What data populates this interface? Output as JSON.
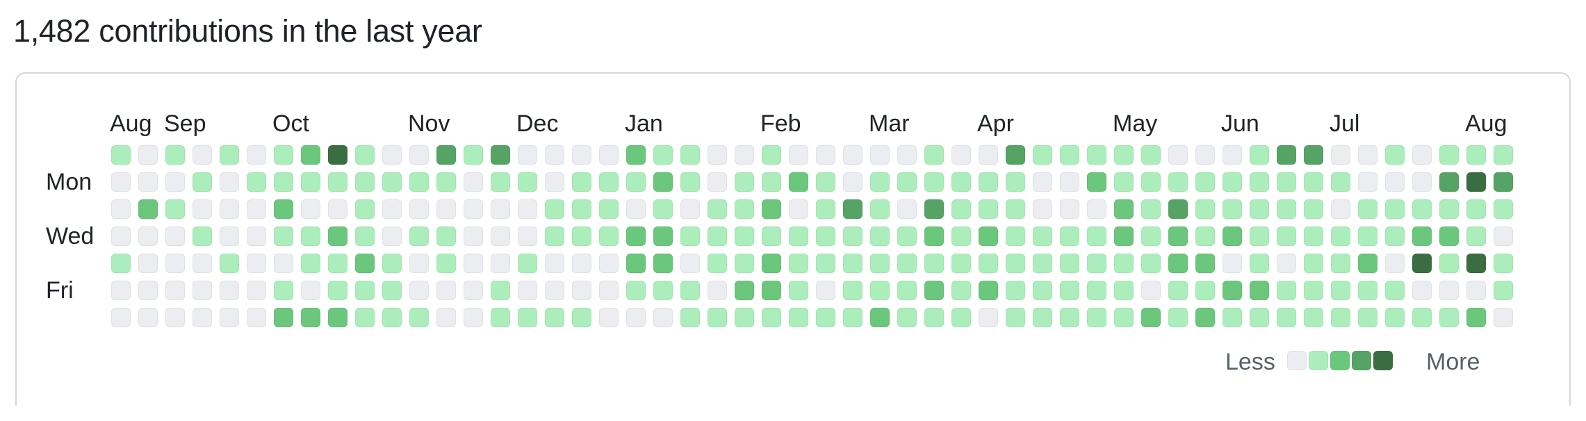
{
  "header": {
    "title": "1,482 contributions in the last year"
  },
  "chart_data": {
    "type": "heatmap",
    "title": "1,482 contributions in the last year",
    "months": [
      {
        "label": "Aug",
        "week": 0
      },
      {
        "label": "Sep",
        "week": 2
      },
      {
        "label": "Oct",
        "week": 6
      },
      {
        "label": "Nov",
        "week": 11
      },
      {
        "label": "Dec",
        "week": 15
      },
      {
        "label": "Jan",
        "week": 19
      },
      {
        "label": "Feb",
        "week": 24
      },
      {
        "label": "Mar",
        "week": 28
      },
      {
        "label": "Apr",
        "week": 32
      },
      {
        "label": "May",
        "week": 37
      },
      {
        "label": "Jun",
        "week": 41
      },
      {
        "label": "Jul",
        "week": 45
      },
      {
        "label": "Aug",
        "week": 50
      }
    ],
    "day_labels": [
      {
        "label": "Mon",
        "row": 1
      },
      {
        "label": "Wed",
        "row": 3
      },
      {
        "label": "Fri",
        "row": 5
      }
    ],
    "levels_by_day": [
      "1010101241003130000211001000001003111110001330010111",
      "0001011111111011011121011210111111002111111111000343",
      "0210002001000000111010112013103111000213111110111111",
      "0001001121011000111221111111112121111212121111112210",
      "1000100112101001000220112111111111111112201011204141",
      "0000001011100010000111022101112121111101122111110001",
      "0000002221110011110001111111211101111121211111111120"
    ],
    "legend": {
      "less_label": "Less",
      "more_label": "More",
      "levels": [
        0,
        1,
        2,
        3,
        4
      ]
    },
    "level_colors": [
      "#ebedf0",
      "#aceebb",
      "#6bc77c",
      "#56a465",
      "#3a6e42"
    ]
  }
}
